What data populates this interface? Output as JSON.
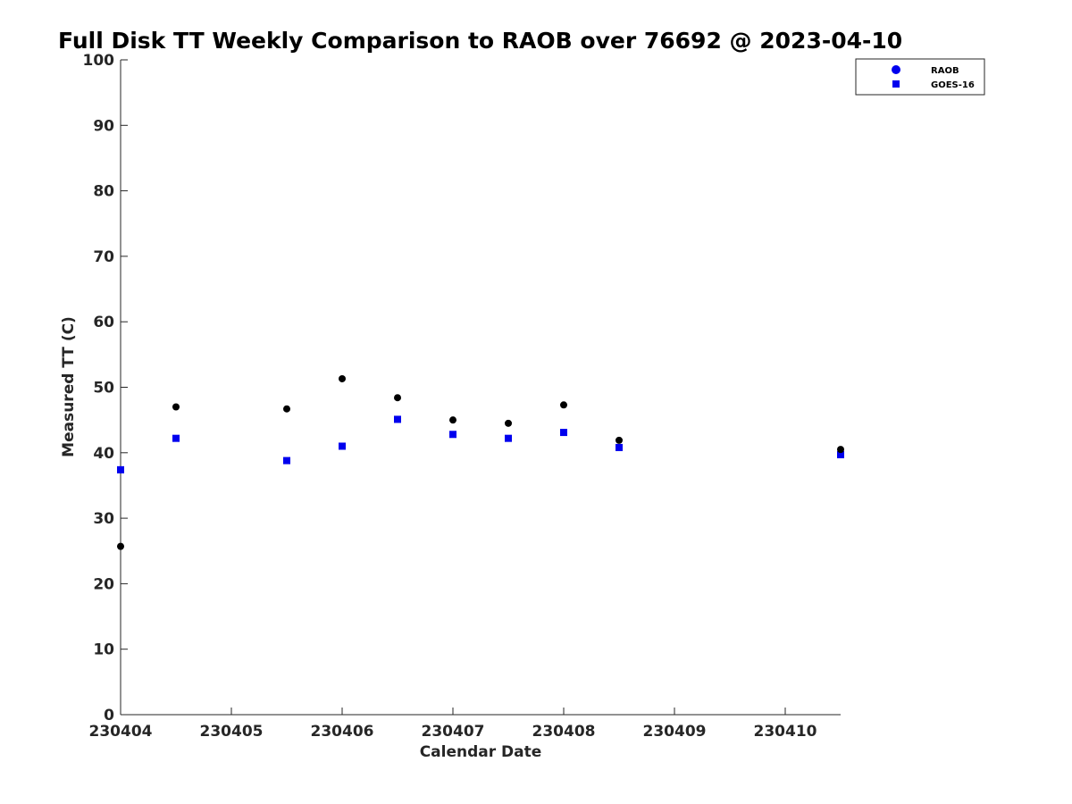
{
  "chart_data": {
    "type": "scatter",
    "title": "Full Disk TT Weekly Comparison to RAOB over 76692 @ 2023-04-10",
    "xlabel": "Calendar Date",
    "ylabel": "Measured TT (C)",
    "xlim": [
      230404,
      230410.5
    ],
    "ylim": [
      0,
      100
    ],
    "x_ticks": [
      230404,
      230405,
      230406,
      230407,
      230408,
      230409,
      230410
    ],
    "x_tick_labels": [
      "230404",
      "230405",
      "230406",
      "230407",
      "230408",
      "230409",
      "230410"
    ],
    "y_ticks": [
      0,
      10,
      20,
      30,
      40,
      50,
      60,
      70,
      80,
      90,
      100
    ],
    "y_tick_labels": [
      "0",
      "10",
      "20",
      "30",
      "40",
      "50",
      "60",
      "70",
      "80",
      "90",
      "100"
    ],
    "grid": false,
    "legend": {
      "position": "top-right"
    },
    "series": [
      {
        "name": "RAOB",
        "marker": "circle",
        "color": "#000000",
        "legend_color": "#0000ee",
        "points": [
          {
            "x": 230404.0,
            "y": 25.7
          },
          {
            "x": 230404.5,
            "y": 47.0
          },
          {
            "x": 230405.5,
            "y": 46.7
          },
          {
            "x": 230406.0,
            "y": 51.3
          },
          {
            "x": 230406.5,
            "y": 48.4
          },
          {
            "x": 230407.0,
            "y": 45.0
          },
          {
            "x": 230407.5,
            "y": 44.5
          },
          {
            "x": 230408.0,
            "y": 47.3
          },
          {
            "x": 230408.5,
            "y": 41.9
          },
          {
            "x": 230410.5,
            "y": 40.5
          }
        ]
      },
      {
        "name": "GOES-16",
        "marker": "square",
        "color": "#0000ee",
        "points": [
          {
            "x": 230404.0,
            "y": 37.4
          },
          {
            "x": 230404.5,
            "y": 42.2
          },
          {
            "x": 230405.5,
            "y": 38.8
          },
          {
            "x": 230406.0,
            "y": 41.0
          },
          {
            "x": 230406.5,
            "y": 45.1
          },
          {
            "x": 230407.0,
            "y": 42.8
          },
          {
            "x": 230407.5,
            "y": 42.2
          },
          {
            "x": 230408.0,
            "y": 43.1
          },
          {
            "x": 230408.5,
            "y": 40.8
          },
          {
            "x": 230410.5,
            "y": 39.7
          }
        ]
      }
    ]
  }
}
